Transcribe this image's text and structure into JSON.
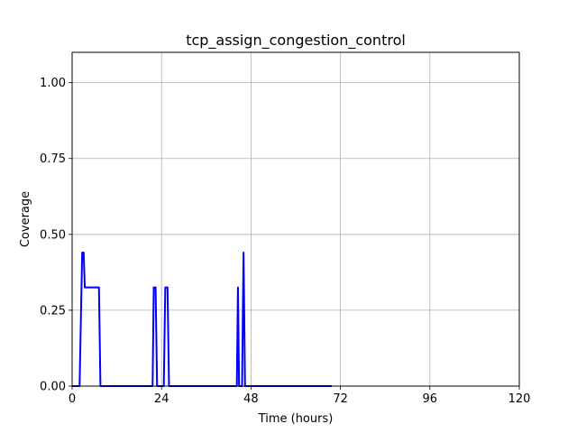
{
  "chart_data": {
    "type": "line",
    "title": "tcp_assign_congestion_control",
    "xlabel": "Time (hours)",
    "ylabel": "Coverage",
    "xlim": [
      0,
      120
    ],
    "ylim": [
      0,
      1.1
    ],
    "xticks": [
      0,
      24,
      48,
      72,
      96,
      120
    ],
    "xtick_labels": [
      "0",
      "24",
      "48",
      "72",
      "96",
      "120"
    ],
    "yticks": [
      0,
      0.25,
      0.5,
      0.75,
      1.0
    ],
    "ytick_labels": [
      "0.00",
      "0.25",
      "0.50",
      "0.75",
      "1.00"
    ],
    "grid": true,
    "series": [
      {
        "color": "#0000ff",
        "x": [
          0,
          2,
          2.7,
          3.1,
          3.4,
          7.2,
          7.6,
          21.6,
          21.9,
          22.4,
          22.8,
          24.6,
          25.0,
          25.6,
          26.0,
          44.2,
          44.5,
          44.8,
          45.6,
          46.0,
          46.4,
          69.7
        ],
        "y": [
          0,
          0,
          0.44,
          0.44,
          0.325,
          0.325,
          0,
          0,
          0.325,
          0.325,
          0,
          0,
          0.325,
          0.325,
          0,
          0,
          0.325,
          0,
          0,
          0.44,
          0,
          0
        ]
      }
    ]
  }
}
